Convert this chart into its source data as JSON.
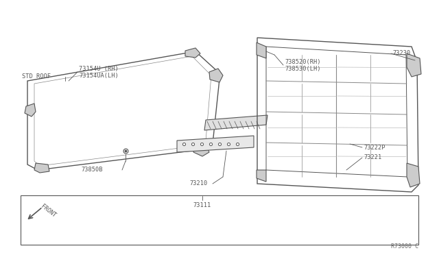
{
  "bg_color": "#ffffff",
  "line_color": "#888888",
  "dark_color": "#555555",
  "label_color": "#555555",
  "ref_code": "R73000 C",
  "std_roof_label": "STD ROOF",
  "labels": {
    "73154U_RH": "73154U (RH)",
    "73154UA_LH": "73154UA(LH)",
    "73850B": "73850B",
    "73111": "73111",
    "73210": "73210",
    "73221": "73221",
    "73222P": "73222P",
    "73230": "73230",
    "738520_RH": "738520(RH)",
    "738530_LH": "738530(LH)"
  }
}
